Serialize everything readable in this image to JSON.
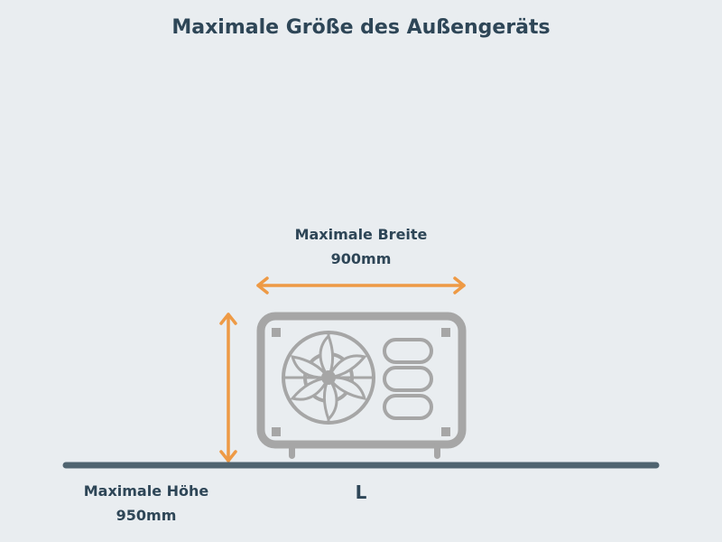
{
  "title": "Maximale Größe des Außengeräts",
  "width_label": {
    "line1": "Maximale Breite",
    "line2": "900mm"
  },
  "height_label": {
    "line1": "Maximale Höhe",
    "line2": "950mm"
  },
  "size_class": "L",
  "colors": {
    "background": "#e9edf0",
    "text": "#2e4657",
    "arrow": "#ee9a45",
    "unit": "#a6a6a6",
    "ground": "#506470"
  },
  "icons": [
    "outdoor-unit-icon",
    "fan-icon",
    "width-arrow-icon",
    "height-arrow-icon"
  ]
}
